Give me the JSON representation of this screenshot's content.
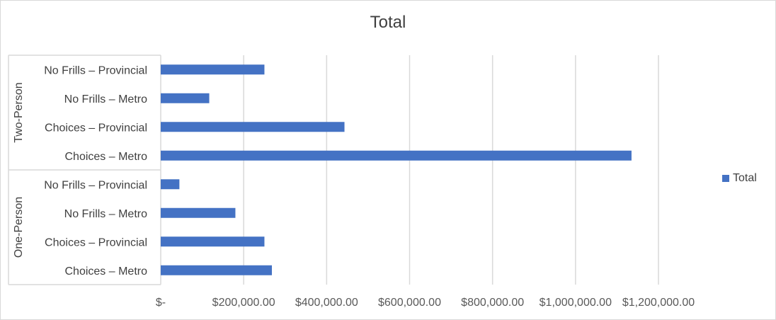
{
  "chart_data": {
    "type": "bar",
    "orientation": "horizontal",
    "title": "Total",
    "groups": [
      {
        "name": "Two-Person",
        "categories": [
          "No Frills – Provincial",
          "No Frills – Metro",
          "Choices – Provincial",
          "Choices – Metro"
        ]
      },
      {
        "name": "One-Person",
        "categories": [
          "No Frills – Provincial",
          "No Frills – Metro",
          "Choices – Provincial",
          "Choices – Metro"
        ]
      }
    ],
    "series": [
      {
        "name": "Total",
        "values": [
          250000,
          117000,
          443000,
          1135000,
          45000,
          180000,
          250000,
          268000
        ]
      }
    ],
    "xlim": [
      0,
      1200000
    ],
    "x_ticks": [
      0,
      200000,
      400000,
      600000,
      800000,
      1000000,
      1200000
    ],
    "x_tick_labels": [
      "$-",
      "$200,000.00",
      "$400,000.00",
      "$600,000.00",
      "$800,000.00",
      "$1,000,000.00",
      "$1,200,000.00"
    ],
    "grid": true,
    "legend": "right",
    "color": "#4472c4"
  }
}
